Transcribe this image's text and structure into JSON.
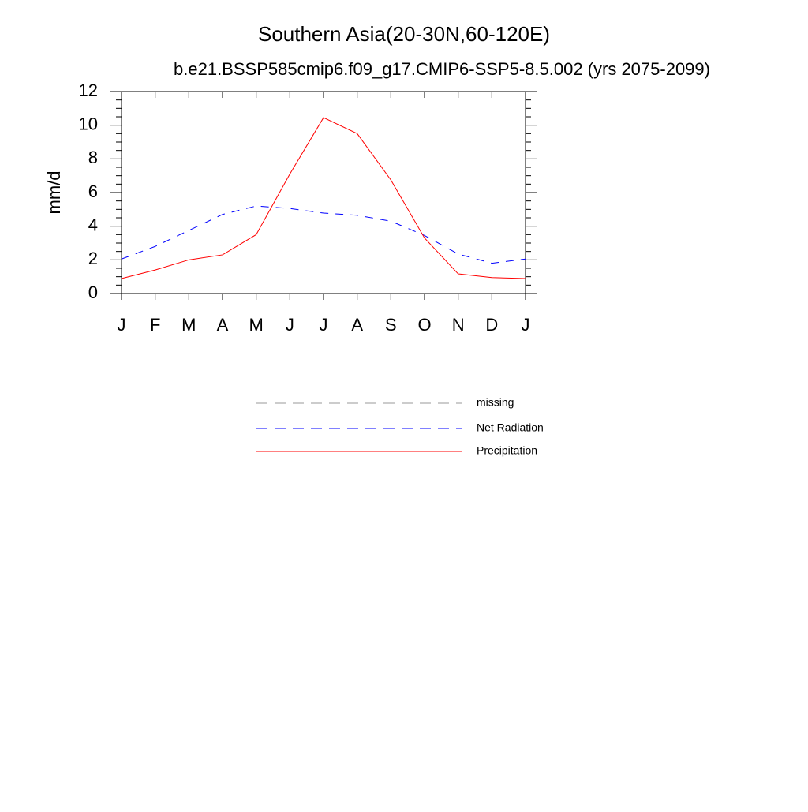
{
  "chart_data": {
    "type": "line",
    "title": "Southern Asia(20-30N,60-120E)",
    "subtitle": "b.e21.BSSP585cmip6.f09_g17.CMIP6-SSP5-8.5.002 (yrs 2075-2099)",
    "y_label": "mm/d",
    "categories": [
      "J",
      "F",
      "M",
      "A",
      "M",
      "J",
      "J",
      "A",
      "S",
      "O",
      "N",
      "D",
      "J"
    ],
    "series": [
      {
        "name": "missing",
        "color": "#999999",
        "dash": "dashed",
        "values": [
          null,
          null,
          null,
          null,
          null,
          null,
          null,
          null,
          null,
          null,
          null,
          null,
          null
        ]
      },
      {
        "name": "Net Radiation",
        "color": "#0000ff",
        "dash": "dashed",
        "values": [
          2.05,
          2.8,
          3.75,
          4.7,
          5.2,
          5.05,
          4.78,
          4.65,
          4.3,
          3.45,
          2.35,
          1.8,
          2.05
        ]
      },
      {
        "name": "Precipitation",
        "color": "#ff0000",
        "dash": "solid",
        "values": [
          0.89,
          1.4,
          2.0,
          2.3,
          3.5,
          7.1,
          10.45,
          9.5,
          6.75,
          3.3,
          1.17,
          0.95,
          0.89
        ]
      }
    ],
    "ylim": [
      0,
      12
    ],
    "yticks": [
      0,
      2,
      4,
      6,
      8,
      10,
      12
    ],
    "yminorticks": [
      0.5,
      1,
      1.5,
      2.5,
      3,
      3.5,
      4.5,
      5,
      5.5,
      6.5,
      7,
      7.5,
      8.5,
      9,
      9.5,
      10.5,
      11,
      11.5
    ]
  }
}
